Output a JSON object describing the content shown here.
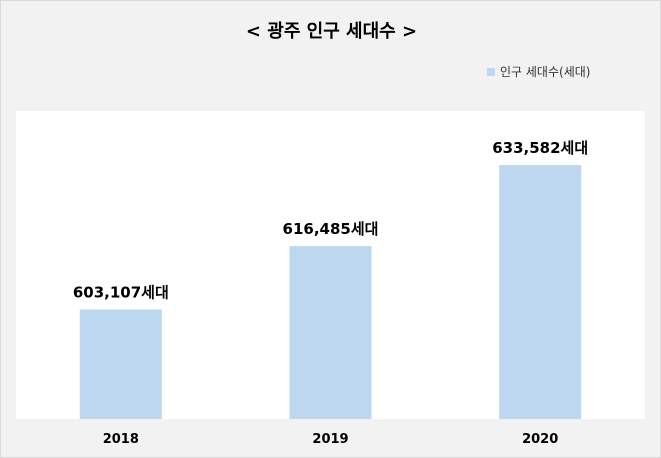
{
  "chart_data": {
    "type": "bar",
    "title": "< 광주 인구 세대수 >",
    "categories": [
      "2018",
      "2019",
      "2020"
    ],
    "series": [
      {
        "name": "인구 세대수(세대)",
        "values": [
          603107,
          616485,
          633582
        ],
        "data_labels": [
          "603,107세대",
          "616,485세대",
          "633,582세대"
        ]
      }
    ],
    "xlabel": "",
    "ylabel": "",
    "ylim": [
      580000,
      645000
    ],
    "grid": false,
    "legend_position": "top-right",
    "colors": {
      "bar": "#bdd7ee",
      "plot_background": "#ffffff",
      "chart_background": "#f2f2f2"
    }
  }
}
